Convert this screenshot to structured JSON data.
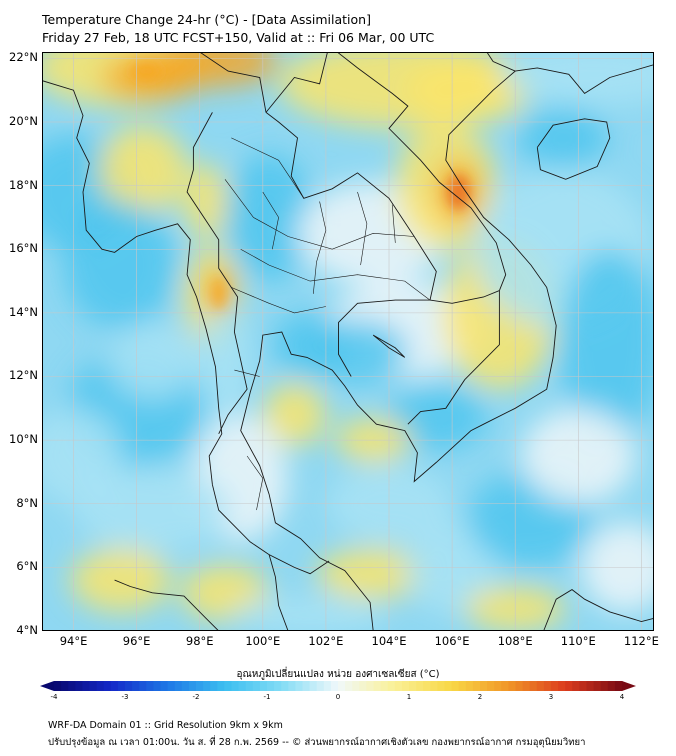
{
  "header": {
    "title_line1": "Temperature Change 24-hr (°C) - [Data Assimilation]",
    "title_line2": "Friday 27 Feb, 18 UTC FCST+150, Valid at :: Fri 06 Mar, 00 UTC"
  },
  "map": {
    "lat_labels": [
      "22°N",
      "20°N",
      "18°N",
      "16°N",
      "14°N",
      "12°N",
      "10°N",
      "8°N",
      "6°N",
      "4°N"
    ],
    "lon_labels": [
      "94°E",
      "96°E",
      "98°E",
      "100°E",
      "102°E",
      "104°E",
      "106°E",
      "108°E",
      "110°E",
      "112°E"
    ],
    "lat_range": [
      4,
      22.2
    ],
    "lon_range": [
      93,
      112.4
    ],
    "colors": {
      "cool": "#4fc6ee",
      "light_cool": "#a9e3f5",
      "neutral": "#eef6f8",
      "warm": "#fbe56a",
      "hot": "#f6a623",
      "hotter": "#e8681f",
      "land_border": "#1a1a1a",
      "grid": "#c8c8c8"
    }
  },
  "colorbar": {
    "title": "อุณหภูมิเปลี่ยนแปลง หน่วย องศาเซลเซียส (°C)",
    "ticks": [
      "-4",
      "-3",
      "-2",
      "-1",
      "0",
      "1",
      "2",
      "3",
      "4"
    ],
    "range": [
      -4,
      4
    ]
  },
  "footer": {
    "line1": "WRF-DA Domain 01 :: Grid Resolution 9km x 9km",
    "line2": "ปรับปรุงข้อมูล ณ เวลา 01:00น. วัน ส. ที่ 28 ก.พ. 2569 -- © ส่วนพยากรณ์อากาศเชิงตัวเลข กองพยากรณ์อากาศ กรมอุตุนิยมวิทยา"
  }
}
